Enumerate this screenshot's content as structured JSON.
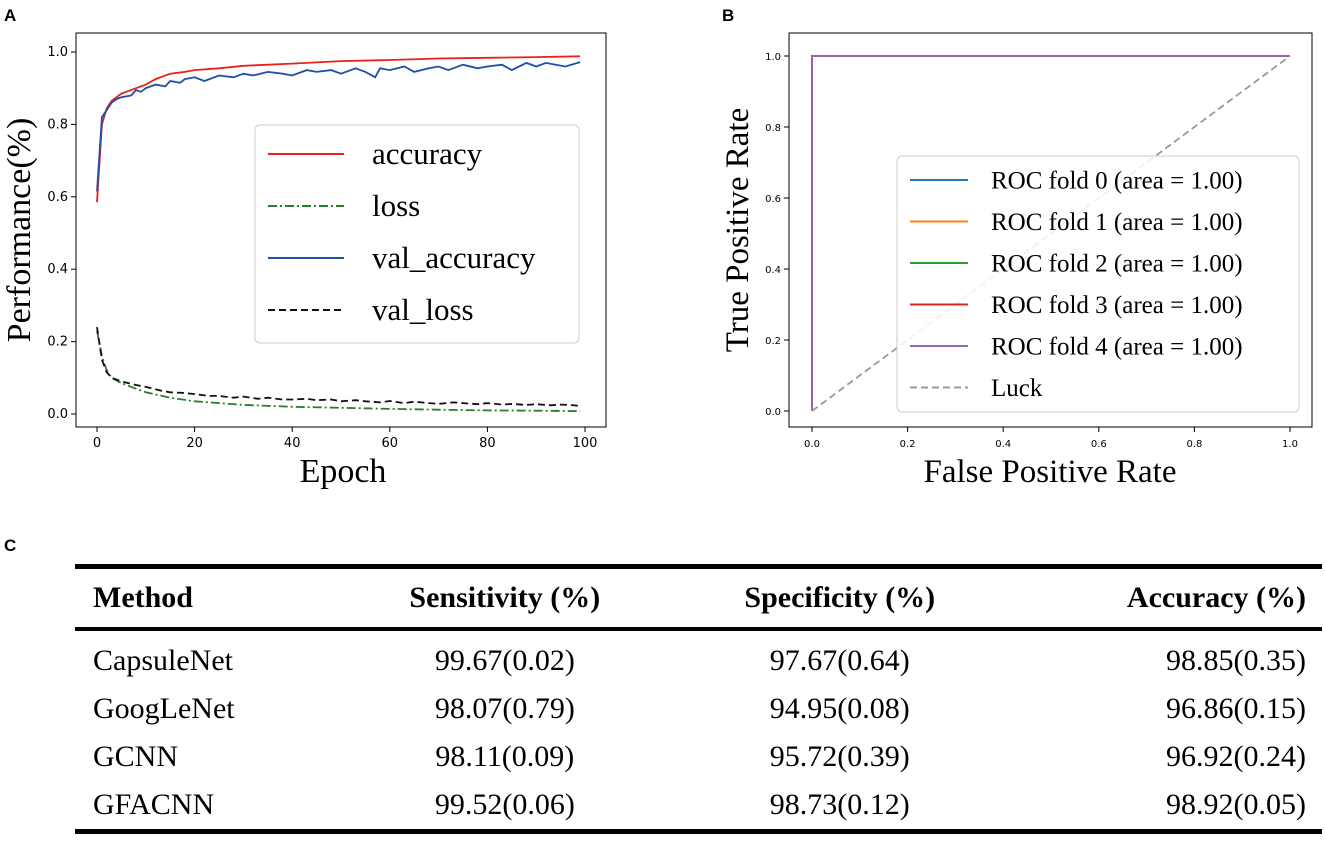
{
  "chart_data": [
    {
      "panel": "A",
      "type": "line",
      "title": "",
      "xlabel": "Epoch",
      "ylabel": "Performance(%)",
      "xlim": [
        0,
        100
      ],
      "ylim": [
        0,
        1.0
      ],
      "xticks": [
        "0",
        "20",
        "40",
        "60",
        "80",
        "100"
      ],
      "yticks": [
        "0.0",
        "0.2",
        "0.4",
        "0.6",
        "0.8",
        "1.0"
      ],
      "legend_position": "center-right",
      "series": [
        {
          "name": "accuracy",
          "color": "#e8211d",
          "style": "solid",
          "x": [
            0,
            1,
            2,
            3,
            5,
            8,
            10,
            12,
            15,
            18,
            20,
            25,
            30,
            40,
            50,
            60,
            70,
            80,
            90,
            99
          ],
          "y": [
            0.585,
            0.8,
            0.845,
            0.865,
            0.885,
            0.9,
            0.91,
            0.925,
            0.94,
            0.945,
            0.95,
            0.955,
            0.962,
            0.968,
            0.975,
            0.978,
            0.982,
            0.984,
            0.986,
            0.988
          ]
        },
        {
          "name": "loss",
          "color": "#2a7d2a",
          "style": "dashdot",
          "x": [
            0,
            1,
            2,
            3,
            5,
            8,
            10,
            15,
            20,
            30,
            40,
            50,
            60,
            70,
            80,
            90,
            99
          ],
          "y": [
            0.23,
            0.16,
            0.12,
            0.1,
            0.085,
            0.07,
            0.06,
            0.045,
            0.035,
            0.025,
            0.02,
            0.017,
            0.014,
            0.012,
            0.01,
            0.009,
            0.008
          ]
        },
        {
          "name": "val_accuracy",
          "color": "#1f4fa7",
          "style": "solid",
          "x": [
            0,
            1,
            2,
            3,
            4,
            5,
            7,
            8,
            9,
            10,
            12,
            14,
            15,
            17,
            18,
            20,
            22,
            25,
            28,
            30,
            32,
            35,
            38,
            40,
            43,
            45,
            48,
            50,
            53,
            55,
            57,
            58,
            60,
            63,
            65,
            68,
            70,
            72,
            75,
            78,
            80,
            83,
            85,
            88,
            90,
            92,
            94,
            96,
            99
          ],
          "y": [
            0.615,
            0.82,
            0.84,
            0.86,
            0.87,
            0.875,
            0.88,
            0.895,
            0.89,
            0.9,
            0.91,
            0.905,
            0.92,
            0.915,
            0.925,
            0.93,
            0.92,
            0.935,
            0.93,
            0.94,
            0.935,
            0.945,
            0.94,
            0.935,
            0.95,
            0.945,
            0.95,
            0.94,
            0.955,
            0.945,
            0.93,
            0.955,
            0.95,
            0.96,
            0.945,
            0.955,
            0.96,
            0.95,
            0.965,
            0.955,
            0.96,
            0.965,
            0.95,
            0.97,
            0.96,
            0.97,
            0.965,
            0.96,
            0.972
          ]
        },
        {
          "name": "val_loss",
          "color": "#111111",
          "style": "dashed",
          "x": [
            0,
            1,
            2,
            3,
            5,
            8,
            10,
            13,
            15,
            18,
            20,
            23,
            25,
            28,
            30,
            33,
            35,
            38,
            40,
            43,
            45,
            48,
            50,
            53,
            55,
            58,
            60,
            63,
            65,
            68,
            70,
            73,
            75,
            78,
            80,
            83,
            85,
            88,
            90,
            93,
            95,
            97,
            99
          ],
          "y": [
            0.24,
            0.15,
            0.115,
            0.1,
            0.09,
            0.08,
            0.075,
            0.065,
            0.06,
            0.058,
            0.055,
            0.05,
            0.05,
            0.045,
            0.048,
            0.042,
            0.045,
            0.04,
            0.04,
            0.042,
            0.038,
            0.04,
            0.035,
            0.038,
            0.035,
            0.032,
            0.036,
            0.03,
            0.034,
            0.03,
            0.028,
            0.032,
            0.03,
            0.027,
            0.03,
            0.026,
            0.028,
            0.025,
            0.027,
            0.024,
            0.026,
            0.025,
            0.022
          ]
        }
      ]
    },
    {
      "panel": "B",
      "type": "line",
      "title": "",
      "xlabel": "False Positive Rate",
      "ylabel": "True Positive Rate",
      "xlim": [
        0,
        1.0
      ],
      "ylim": [
        0,
        1.0
      ],
      "xticks": [
        "0.0",
        "0.2",
        "0.4",
        "0.6",
        "0.8",
        "1.0"
      ],
      "yticks": [
        "0.0",
        "0.2",
        "0.4",
        "0.6",
        "0.8",
        "1.0"
      ],
      "legend_position": "lower-right",
      "series": [
        {
          "name": "ROC fold 0 (area = 1.00)",
          "color": "#1f77b4",
          "style": "solid",
          "x": [
            0,
            0,
            1
          ],
          "y": [
            0,
            1,
            1
          ]
        },
        {
          "name": "ROC fold 1 (area = 1.00)",
          "color": "#ff7f0e",
          "style": "solid",
          "x": [
            0,
            0,
            1
          ],
          "y": [
            0,
            1,
            1
          ]
        },
        {
          "name": "ROC fold 2 (area = 1.00)",
          "color": "#2ca02c",
          "style": "solid",
          "x": [
            0,
            0,
            1
          ],
          "y": [
            0,
            1,
            1
          ]
        },
        {
          "name": "ROC fold 3 (area = 1.00)",
          "color": "#d62728",
          "style": "solid",
          "x": [
            0,
            0,
            1
          ],
          "y": [
            0,
            1,
            1
          ]
        },
        {
          "name": "ROC fold 4 (area = 1.00)",
          "color": "#9467bd",
          "style": "solid",
          "x": [
            0,
            0,
            1
          ],
          "y": [
            0,
            1,
            1
          ]
        },
        {
          "name": "Luck",
          "color": "#999999",
          "style": "dashed",
          "x": [
            0,
            1
          ],
          "y": [
            0,
            1
          ]
        }
      ]
    },
    {
      "panel": "C",
      "type": "table",
      "columns": [
        "Method",
        "Sensitivity (%)",
        "Specificity (%)",
        "Accuracy (%)"
      ],
      "rows": [
        [
          "CapsuleNet",
          "99.67(0.02)",
          "97.67(0.64)",
          "98.85(0.35)"
        ],
        [
          "GoogLeNet",
          "98.07(0.79)",
          "94.95(0.08)",
          "96.86(0.15)"
        ],
        [
          "GCNN",
          "98.11(0.09)",
          "95.72(0.39)",
          "96.92(0.24)"
        ],
        [
          "GFACNN",
          "99.52(0.06)",
          "98.73(0.12)",
          "98.92(0.05)"
        ]
      ]
    }
  ],
  "panel_labels": {
    "a": "A",
    "b": "B",
    "c": "C"
  }
}
